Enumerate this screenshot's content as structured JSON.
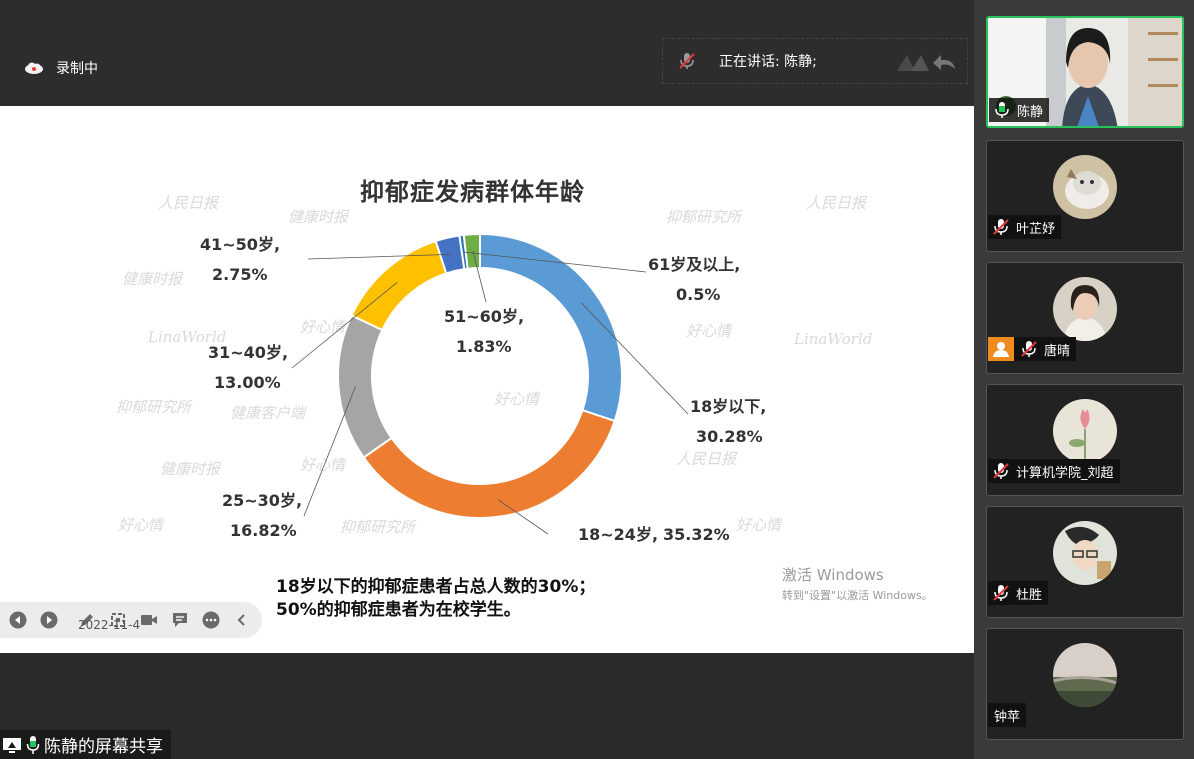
{
  "topbar": {
    "recording_label": "录制中",
    "speaking_label": "正在讲话: 陈静;"
  },
  "slide": {
    "title": "抑郁症发病群体年龄",
    "watermarks": [
      "人民日报",
      "健康时报",
      "健康客户端",
      "抑郁研究所",
      "好心情",
      "LinaWorld"
    ],
    "note_line1": "18岁以下的抑郁症患者占总人数的30%；",
    "note_line2": "50%的抑郁症患者为在校学生。",
    "date": "2022-11-4",
    "activate_title": "激活 Windows",
    "activate_sub": "转到\"设置\"以激活 Windows。",
    "toolbar_icons": [
      "prev-icon",
      "next-icon",
      "pen-icon",
      "screenshot-icon",
      "camera-icon",
      "comment-icon",
      "more-icon",
      "collapse-icon"
    ]
  },
  "chart_data": {
    "type": "pie",
    "title": "抑郁症发病群体年龄",
    "donut": true,
    "categories": [
      "18岁以下",
      "18~24岁",
      "25~30岁",
      "31~40岁",
      "41~50岁",
      "51~60岁",
      "61岁及以上"
    ],
    "values": [
      30.28,
      35.32,
      16.82,
      13.0,
      2.75,
      1.83,
      0.5
    ],
    "labels": [
      {
        "name": "18岁以下,",
        "value": "30.28%"
      },
      {
        "name": "18~24岁,",
        "value": "35.32%"
      },
      {
        "name": "25~30岁,",
        "value": "16.82%"
      },
      {
        "name": "31~40岁,",
        "value": "13.00%"
      },
      {
        "name": "41~50岁,",
        "value": "2.75%"
      },
      {
        "name": "51~60岁,",
        "value": "1.83%"
      },
      {
        "name": "61岁及以上,",
        "value": "0.5%"
      }
    ],
    "colors": [
      "#5b9bd5",
      "#ed7d31",
      "#a5a5a5",
      "#ffc000",
      "#4472c4",
      "#70ad47",
      "#2e75b6"
    ]
  },
  "footer": {
    "share_label": "陈静的屏幕共享"
  },
  "participants": [
    {
      "name": "陈静",
      "mic": "on",
      "video": true
    },
    {
      "name": "叶芷妤",
      "mic": "muted"
    },
    {
      "name": "唐晴",
      "mic": "muted"
    },
    {
      "name": "计算机学院_刘超",
      "mic": "muted"
    },
    {
      "name": "杜胜",
      "mic": "muted"
    },
    {
      "name": "钟苹",
      "mic": "none"
    }
  ]
}
